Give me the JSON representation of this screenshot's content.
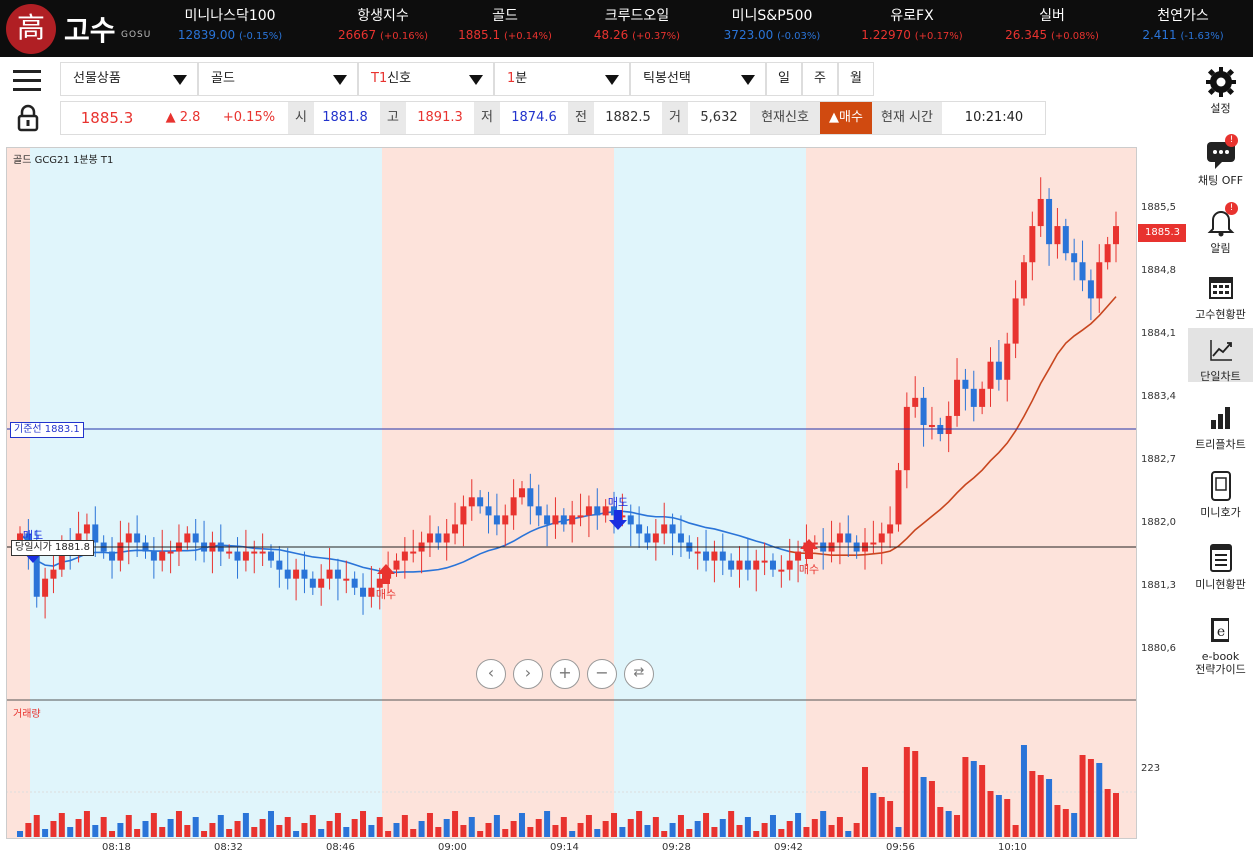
{
  "brand": {
    "seal": "高",
    "name": "고수",
    "sub": "GOSU"
  },
  "tickers": [
    {
      "name": "미니나스닥100",
      "value": "12839.00",
      "change": "(-0.15%)",
      "dir": "dn"
    },
    {
      "name": "항생지수",
      "value": "26667",
      "change": "(+0.16%)",
      "dir": "up"
    },
    {
      "name": "골드",
      "value": "1885.1",
      "change": "(+0.14%)",
      "dir": "up"
    },
    {
      "name": "크루드오일",
      "value": "48.26",
      "change": "(+0.37%)",
      "dir": "up"
    },
    {
      "name": "미니S&P500",
      "value": "3723.00",
      "change": "(-0.03%)",
      "dir": "dn"
    },
    {
      "name": "유로FX",
      "value": "1.22970",
      "change": "(+0.17%)",
      "dir": "up"
    },
    {
      "name": "실버",
      "value": "26.345",
      "change": "(+0.08%)",
      "dir": "up"
    },
    {
      "name": "천연가스",
      "value": "2.411",
      "change": "(-1.63%)",
      "dir": "dn"
    }
  ],
  "selectors": {
    "product": "선물상품",
    "item": "골드",
    "signal_prefix": "T1",
    "signal": "신호",
    "interval_prefix": "1",
    "interval": "분",
    "candle": "틱봉선택"
  },
  "periods": [
    "일",
    "주",
    "월"
  ],
  "quote": {
    "price": "1885.3",
    "change": "▲ 2.8",
    "pct": "+0.15%",
    "open_label": "시",
    "open": "1881.8",
    "high_label": "고",
    "high": "1891.3",
    "low_label": "저",
    "low": "1874.6",
    "prev_label": "전",
    "prev": "1882.5",
    "vol_label": "거",
    "vol": "5,632",
    "signal_label": "현재신호",
    "signal": "▲매수",
    "time_label": "현재 시간",
    "time": "10:21:40"
  },
  "sidebar": [
    {
      "id": "settings",
      "label": "설정",
      "icon": "gear-icon"
    },
    {
      "id": "chat",
      "label": "채팅 OFF",
      "icon": "chat-icon",
      "badge": "!"
    },
    {
      "id": "alarm",
      "label": "알림",
      "icon": "bell-icon",
      "badge": "!"
    },
    {
      "id": "gosu-status",
      "label": "고수현황판",
      "icon": "calendar-icon"
    },
    {
      "id": "single-chart",
      "label": "단일차트",
      "icon": "line-chart-icon",
      "active": true
    },
    {
      "id": "triple-chart",
      "label": "트리플차트",
      "icon": "bar-chart-icon"
    },
    {
      "id": "mini-quote",
      "label": "미니호가",
      "icon": "phone-icon"
    },
    {
      "id": "mini-status",
      "label": "미니현황판",
      "icon": "list-icon"
    },
    {
      "id": "ebook",
      "label": "e-book\n전략가이드",
      "icon": "book-icon"
    }
  ],
  "chart": {
    "label": "골드   GCG21   1분봉   T1",
    "volume_label": "거래량",
    "baseline_label": "기준선 1883.1",
    "open_label": "당일시가 1881.8",
    "current_tag": "1885.3",
    "volume_tick": "223",
    "signals": [
      {
        "text": "매도",
        "dir": "sell"
      },
      {
        "text": "매수",
        "dir": "buy"
      },
      {
        "text": "매도",
        "dir": "sell"
      },
      {
        "text": "매수",
        "dir": "buy"
      }
    ]
  },
  "colors": {
    "up": "#e8332f",
    "down": "#2a74d8",
    "buy_zone": "#fde3db",
    "sell_zone": "#e0f5fb",
    "ma": "#c8461f",
    "signal_ma": "#2a74d8"
  },
  "chart_data": {
    "type": "candlestick",
    "price_ticks": [
      "1885,5",
      "1884,8",
      "1884,1",
      "1883,4",
      "1882,7",
      "1882,0",
      "1881,3",
      "1880,6"
    ],
    "time_ticks": [
      "08:18",
      "08:32",
      "08:46",
      "09:00",
      "09:14",
      "09:28",
      "09:42",
      "09:56",
      "10:10"
    ],
    "baseline": 1883.1,
    "open_price": 1881.8,
    "current": 1885.3,
    "closes": [
      1881.9,
      1881.7,
      1881.2,
      1881.4,
      1881.5,
      1881.8,
      1881.7,
      1881.9,
      1882.0,
      1881.8,
      1881.7,
      1881.6,
      1881.8,
      1881.9,
      1881.8,
      1881.7,
      1881.6,
      1881.7,
      1881.7,
      1881.8,
      1881.9,
      1881.8,
      1881.7,
      1881.8,
      1881.7,
      1881.7,
      1881.6,
      1881.7,
      1881.7,
      1881.7,
      1881.6,
      1881.5,
      1881.4,
      1881.5,
      1881.4,
      1881.3,
      1881.4,
      1881.5,
      1881.4,
      1881.4,
      1881.3,
      1881.2,
      1881.3,
      1881.4,
      1881.5,
      1881.6,
      1881.7,
      1881.7,
      1881.8,
      1881.9,
      1881.8,
      1881.9,
      1882.0,
      1882.2,
      1882.3,
      1882.2,
      1882.1,
      1882.0,
      1882.1,
      1882.3,
      1882.4,
      1882.2,
      1882.1,
      1882.0,
      1882.1,
      1882.0,
      1882.1,
      1882.1,
      1882.2,
      1882.1,
      1882.2,
      1882.1,
      1882.1,
      1882.0,
      1881.9,
      1881.8,
      1881.9,
      1882.0,
      1881.9,
      1881.8,
      1881.7,
      1881.7,
      1881.6,
      1881.7,
      1881.6,
      1881.5,
      1881.6,
      1881.5,
      1881.6,
      1881.6,
      1881.5,
      1881.5,
      1881.6,
      1881.7,
      1881.8,
      1881.8,
      1881.7,
      1881.8,
      1881.9,
      1881.8,
      1881.7,
      1881.8,
      1881.8,
      1881.9,
      1882.0,
      1882.6,
      1883.3,
      1883.4,
      1883.1,
      1883.1,
      1883.0,
      1883.2,
      1883.6,
      1883.5,
      1883.3,
      1883.5,
      1883.8,
      1883.6,
      1884.0,
      1884.5,
      1884.9,
      1885.3,
      1885.6,
      1885.1,
      1885.3,
      1885.0,
      1884.9,
      1884.7,
      1884.5,
      1884.9,
      1885.1,
      1885.3
    ]
  }
}
